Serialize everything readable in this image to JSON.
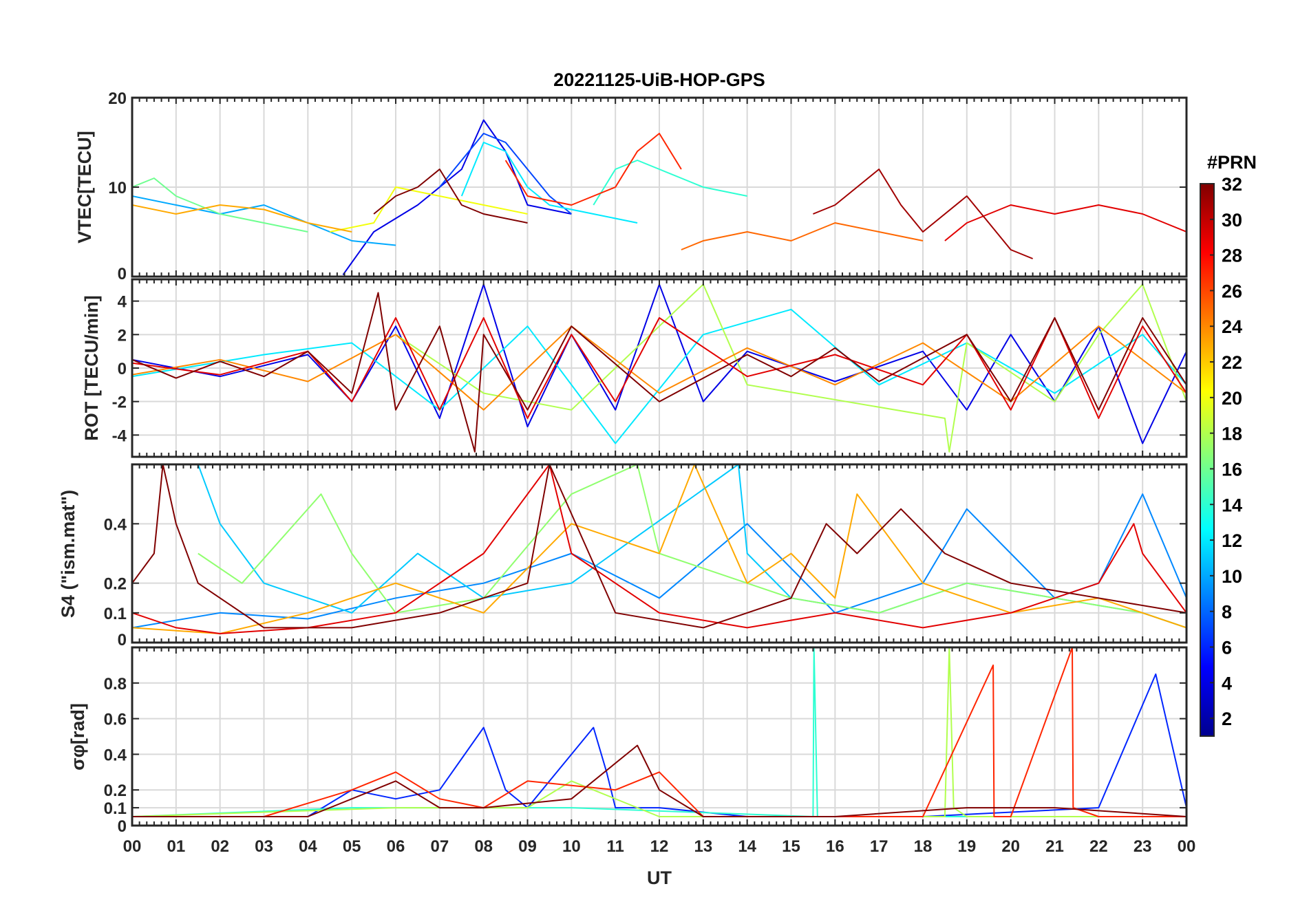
{
  "chart_data": [
    {
      "id": "vtec",
      "type": "line",
      "title": "20221125-UiB-HOP-GPS",
      "xlabel": "",
      "ylabel": "VTEC[TECU]",
      "xlim": [
        0,
        24
      ],
      "ylim": [
        0,
        20
      ],
      "yticks": [
        0,
        10,
        20
      ],
      "ytick_labels": [
        "0",
        "10",
        "20"
      ],
      "grid": true,
      "series": [
        {
          "name": "PRN 4",
          "prn": 4,
          "x": [
            4.8,
            5.5,
            6.5,
            7.5,
            8.0,
            8.5,
            9.0,
            10.0
          ],
          "values": [
            0.2,
            5,
            8,
            12,
            17.5,
            14,
            8,
            7
          ]
        },
        {
          "name": "PRN 7",
          "prn": 7,
          "x": [
            7.0,
            7.5,
            8.0,
            8.5,
            9.0,
            9.5,
            10.0
          ],
          "values": [
            10,
            13,
            16,
            15,
            12,
            9,
            7
          ]
        },
        {
          "name": "PRN 10",
          "prn": 10,
          "x": [
            0,
            1,
            2,
            3,
            4,
            5,
            6
          ],
          "values": [
            9,
            8,
            7,
            8,
            6,
            4,
            3.5
          ]
        },
        {
          "name": "PRN 12",
          "prn": 12,
          "x": [
            7.5,
            8.0,
            8.5,
            9.0,
            9.5,
            10.5,
            11.5
          ],
          "values": [
            9,
            15,
            14,
            10,
            8,
            7,
            6
          ]
        },
        {
          "name": "PRN 14",
          "prn": 14,
          "x": [
            10.5,
            11.0,
            11.5,
            12.0,
            12.5,
            13.0,
            14.0
          ],
          "values": [
            8,
            12,
            13,
            12,
            11,
            10,
            9
          ]
        },
        {
          "name": "PRN 16",
          "prn": 16,
          "x": [
            0,
            0.5,
            1,
            2,
            3,
            4
          ],
          "values": [
            10,
            11,
            9,
            7,
            6,
            5
          ]
        },
        {
          "name": "PRN 20",
          "prn": 20,
          "x": [
            4.5,
            5.5,
            6.0,
            7.0,
            8.0,
            9.0
          ],
          "values": [
            5,
            6,
            10,
            9,
            8,
            7
          ]
        },
        {
          "name": "PRN 23",
          "prn": 23,
          "x": [
            0,
            1,
            2,
            3,
            4,
            5
          ],
          "values": [
            8,
            7,
            8,
            7.5,
            6,
            5
          ]
        },
        {
          "name": "PRN 25",
          "prn": 25,
          "x": [
            12.5,
            13.0,
            14.0,
            15.0,
            16.0,
            17.0,
            18.0
          ],
          "values": [
            3,
            4,
            5,
            4,
            6,
            5,
            4
          ]
        },
        {
          "name": "PRN 27",
          "prn": 27,
          "x": [
            8.5,
            9.0,
            10.0,
            11.0,
            11.5,
            12.0,
            12.5
          ],
          "values": [
            13,
            9,
            8,
            10,
            14,
            16,
            12
          ]
        },
        {
          "name": "PRN 29",
          "prn": 29,
          "x": [
            18.5,
            19.0,
            20.0,
            21.0,
            22.0,
            23.0,
            24.0
          ],
          "values": [
            4,
            6,
            8,
            7,
            8,
            7,
            5
          ]
        },
        {
          "name": "PRN 31",
          "prn": 31,
          "x": [
            15.5,
            16.0,
            16.5,
            17.0,
            17.5,
            18.0,
            19.0,
            19.5,
            20.0,
            20.5
          ],
          "values": [
            7,
            8,
            10,
            12,
            8,
            5,
            9,
            6,
            3,
            2
          ]
        },
        {
          "name": "PRN 32",
          "prn": 32,
          "x": [
            5.5,
            6.0,
            6.5,
            7.0,
            7.5,
            8.0,
            9.0
          ],
          "values": [
            7,
            9,
            10,
            12,
            8,
            7,
            6
          ]
        }
      ]
    },
    {
      "id": "rot",
      "type": "line",
      "xlabel": "",
      "ylabel": "ROT [TECU/min]",
      "xlim": [
        0,
        24
      ],
      "ylim": [
        -5.3,
        5.3
      ],
      "yticks": [
        -4,
        -2,
        0,
        2,
        4
      ],
      "ytick_labels": [
        "-4",
        "-2",
        "0",
        "2",
        "4"
      ],
      "grid": true,
      "series": [
        {
          "name": "PRN 4",
          "prn": 4,
          "x": [
            0,
            2,
            4,
            5,
            6,
            7,
            8,
            9,
            10,
            11,
            12,
            13,
            14,
            16,
            18,
            19,
            20,
            21,
            22,
            23,
            24
          ],
          "values": [
            0.5,
            -0.5,
            0.8,
            -2,
            2.5,
            -3,
            5,
            -3.5,
            2,
            -2.5,
            5,
            -2,
            1,
            -0.8,
            1,
            -2.5,
            2,
            -2,
            2.5,
            -4.5,
            1
          ]
        },
        {
          "name": "PRN 12",
          "prn": 12,
          "x": [
            0,
            3,
            5,
            7,
            9,
            11,
            13,
            15,
            17,
            19,
            21,
            23,
            24
          ],
          "values": [
            -0.5,
            0.8,
            1.5,
            -2.5,
            2.5,
            -4.5,
            2,
            3.5,
            -1,
            1.5,
            -1.5,
            2,
            -1
          ]
        },
        {
          "name": "PRN 18",
          "prn": 18,
          "x": [
            6,
            8,
            10,
            13,
            14,
            18.5,
            18.6,
            19,
            21,
            22,
            23,
            24
          ],
          "values": [
            2,
            -1.5,
            -2.5,
            5,
            -1,
            -3,
            -5,
            1.5,
            -2,
            2,
            5,
            -2
          ]
        },
        {
          "name": "PRN 24",
          "prn": 24,
          "x": [
            0,
            2,
            4,
            6,
            8,
            10,
            12,
            14,
            16,
            18,
            20,
            22,
            24
          ],
          "values": [
            -0.4,
            0.5,
            -0.8,
            2,
            -2.5,
            2.5,
            -1.5,
            1.2,
            -1,
            1.5,
            -2,
            2.5,
            -1.5
          ]
        },
        {
          "name": "PRN 29",
          "prn": 29,
          "x": [
            0,
            2,
            4,
            5,
            6,
            7,
            8,
            9,
            10,
            11,
            12,
            14,
            16,
            18,
            19,
            20,
            21,
            22,
            23,
            24
          ],
          "values": [
            0.3,
            -0.4,
            1,
            -2,
            3,
            -2.5,
            3,
            -3,
            2,
            -2,
            3,
            -0.5,
            0.8,
            -1,
            2,
            -2.5,
            3,
            -3,
            2.5,
            -1.5
          ]
        },
        {
          "name": "PRN 32",
          "prn": 32,
          "x": [
            0,
            1,
            2,
            3,
            4,
            5,
            5.6,
            6,
            7,
            7.8,
            8,
            9,
            10,
            12,
            14,
            15,
            16,
            17,
            18,
            19,
            20,
            21,
            22,
            23,
            24
          ],
          "values": [
            0.5,
            -0.6,
            0.4,
            -0.5,
            1,
            -1.5,
            4.5,
            -2.5,
            2.5,
            -5,
            2,
            -2.5,
            2.5,
            -2,
            0.8,
            -0.5,
            1.2,
            -0.8,
            0.6,
            2,
            -2,
            3,
            -2.5,
            3,
            -1
          ]
        }
      ]
    },
    {
      "id": "s4",
      "type": "line",
      "xlabel": "",
      "ylabel": "S4 (\"ism.mat\")",
      "xlim": [
        0,
        24
      ],
      "ylim": [
        0,
        0.6
      ],
      "yticks": [
        0,
        0.1,
        0.2,
        0.4
      ],
      "ytick_labels": [
        "0",
        "0.1",
        "0.2",
        "0.4"
      ],
      "grid": true,
      "series": [
        {
          "name": "PRN 9",
          "prn": 9,
          "x": [
            0,
            2,
            4,
            6,
            8,
            10,
            12,
            14,
            16,
            18,
            19,
            20,
            21,
            22,
            23,
            24
          ],
          "values": [
            0.05,
            0.1,
            0.08,
            0.15,
            0.2,
            0.3,
            0.15,
            0.4,
            0.1,
            0.2,
            0.45,
            0.3,
            0.15,
            0.2,
            0.5,
            0.15
          ]
        },
        {
          "name": "PRN 11",
          "prn": 11,
          "x": [
            1.5,
            2,
            3,
            5,
            6.5,
            8,
            10,
            13.8,
            14,
            15,
            17,
            19,
            21,
            23,
            24
          ],
          "values": [
            0.6,
            0.4,
            0.2,
            0.1,
            0.3,
            0.15,
            0.2,
            0.6,
            0.3,
            0.15,
            0.1,
            0.2,
            0.15,
            0.1,
            0.05
          ]
        },
        {
          "name": "PRN 17",
          "prn": 17,
          "x": [
            1.5,
            2.5,
            4.3,
            5,
            6,
            8,
            10,
            11.5,
            12,
            13,
            15,
            17,
            19,
            21,
            23,
            24
          ],
          "values": [
            0.3,
            0.2,
            0.5,
            0.3,
            0.1,
            0.15,
            0.5,
            0.6,
            0.3,
            0.25,
            0.15,
            0.1,
            0.2,
            0.15,
            0.1,
            0.05
          ]
        },
        {
          "name": "PRN 23",
          "prn": 23,
          "x": [
            0,
            2,
            4,
            6,
            8,
            10,
            12,
            12.8,
            14,
            15,
            16,
            16.5,
            18,
            20,
            22,
            24
          ],
          "values": [
            0.05,
            0.03,
            0.1,
            0.2,
            0.1,
            0.4,
            0.3,
            0.6,
            0.2,
            0.3,
            0.15,
            0.5,
            0.2,
            0.1,
            0.15,
            0.05
          ]
        },
        {
          "name": "PRN 29",
          "prn": 29,
          "x": [
            0,
            1,
            2,
            4,
            6,
            8,
            9.5,
            10,
            12,
            14,
            16,
            18,
            20,
            22,
            22.8,
            23,
            24
          ],
          "values": [
            0.1,
            0.05,
            0.03,
            0.05,
            0.1,
            0.3,
            0.6,
            0.3,
            0.1,
            0.05,
            0.1,
            0.05,
            0.1,
            0.2,
            0.4,
            0.3,
            0.1
          ]
        },
        {
          "name": "PRN 32",
          "prn": 32,
          "x": [
            0,
            0.5,
            0.7,
            1,
            1.5,
            3,
            5,
            7,
            9,
            9.5,
            11,
            13,
            15,
            15.8,
            16.5,
            17.5,
            18.5,
            20,
            22,
            24
          ],
          "values": [
            0.2,
            0.3,
            0.6,
            0.4,
            0.2,
            0.05,
            0.05,
            0.1,
            0.2,
            0.6,
            0.1,
            0.05,
            0.15,
            0.4,
            0.3,
            0.45,
            0.3,
            0.2,
            0.15,
            0.1
          ]
        }
      ]
    },
    {
      "id": "sigma",
      "type": "line",
      "xlabel": "UT",
      "ylabel": "σφ[rad]",
      "xlim": [
        0,
        24
      ],
      "ylim": [
        0,
        1
      ],
      "yticks": [
        0,
        0.1,
        0.2,
        0.4,
        0.6,
        0.8
      ],
      "ytick_labels": [
        "0",
        "0.1",
        "0.2",
        "0.4",
        "0.6",
        "0.8"
      ],
      "grid": true,
      "series": [
        {
          "name": "PRN 6",
          "prn": 6,
          "x": [
            0,
            2,
            4,
            5,
            6,
            7,
            8,
            8.5,
            9,
            10.5,
            10.8,
            11,
            12,
            14,
            18,
            22,
            23.3,
            24
          ],
          "values": [
            0.05,
            0.05,
            0.05,
            0.2,
            0.15,
            0.2,
            0.55,
            0.2,
            0.1,
            0.55,
            0.3,
            0.1,
            0.1,
            0.05,
            0.05,
            0.1,
            0.85,
            0.1
          ]
        },
        {
          "name": "PRN 14",
          "prn": 14,
          "x": [
            0,
            5,
            10,
            15.5,
            15.52,
            15.6,
            20,
            24
          ],
          "values": [
            0.05,
            0.1,
            0.1,
            0.05,
            1.0,
            0.05,
            0.05,
            0.05
          ]
        },
        {
          "name": "PRN 18",
          "prn": 18,
          "x": [
            0,
            6,
            9,
            10,
            12,
            18.5,
            18.6,
            18.7,
            19,
            24
          ],
          "values": [
            0.05,
            0.1,
            0.1,
            0.25,
            0.05,
            0.05,
            1.0,
            0.1,
            0.05,
            0.05
          ]
        },
        {
          "name": "PRN 27",
          "prn": 27,
          "x": [
            0,
            3,
            5,
            6,
            7,
            8,
            9,
            11,
            12,
            13,
            18,
            19.6,
            19.62,
            20,
            21.4,
            21.42,
            22,
            24
          ],
          "values": [
            0.05,
            0.05,
            0.2,
            0.3,
            0.15,
            0.1,
            0.25,
            0.2,
            0.3,
            0.05,
            0.05,
            0.9,
            0.05,
            0.05,
            1.0,
            0.1,
            0.05,
            0.05
          ]
        },
        {
          "name": "PRN 32",
          "prn": 32,
          "x": [
            0,
            4,
            5,
            6,
            7,
            8,
            10,
            11.5,
            12,
            13,
            16,
            19,
            21,
            24
          ],
          "values": [
            0.05,
            0.05,
            0.15,
            0.25,
            0.1,
            0.1,
            0.15,
            0.45,
            0.2,
            0.05,
            0.05,
            0.1,
            0.1,
            0.05
          ]
        }
      ]
    }
  ],
  "x_axis": {
    "label": "UT",
    "tick_labels": [
      "00",
      "01",
      "02",
      "03",
      "04",
      "05",
      "06",
      "07",
      "08",
      "09",
      "10",
      "11",
      "12",
      "13",
      "14",
      "15",
      "16",
      "17",
      "18",
      "19",
      "20",
      "21",
      "22",
      "23",
      "00"
    ]
  },
  "colorbar": {
    "label": "#PRN",
    "range": [
      1,
      32
    ],
    "tick_labels": [
      "2",
      "4",
      "6",
      "8",
      "10",
      "12",
      "14",
      "16",
      "18",
      "20",
      "22",
      "24",
      "26",
      "28",
      "30",
      "32"
    ],
    "colormap": "jet",
    "color_stops": [
      "#00008f",
      "#0000ff",
      "#00ffff",
      "#ffff00",
      "#ff0000",
      "#800000"
    ]
  }
}
